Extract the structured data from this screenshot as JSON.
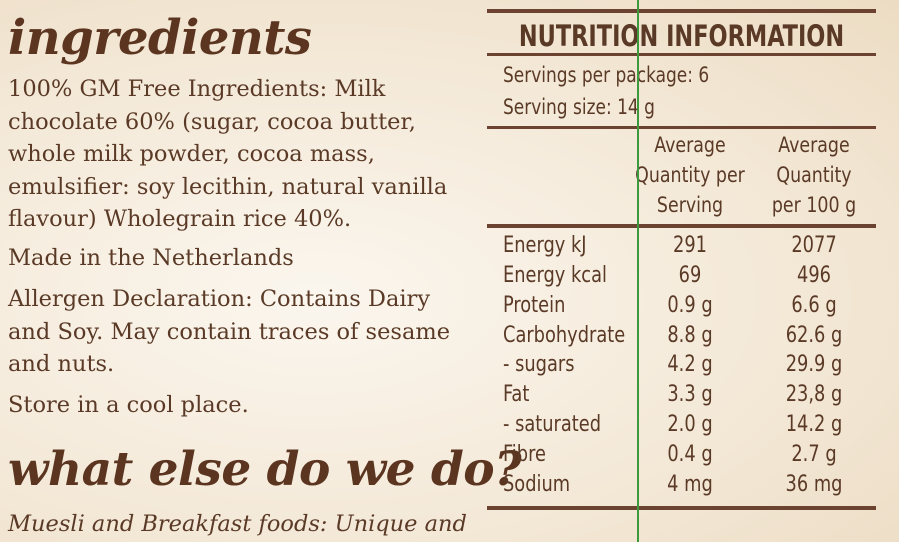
{
  "ingredients": {
    "heading": "ingredients",
    "text": "100% GM Free Ingredients: Milk chocolate 60% (sugar, cocoa butter, whole milk powder, cocoa mass, emulsifier: soy lecithin, natural vanilla flavour) Wholegrain rice 40%.",
    "origin": "Made in the Netherlands",
    "allergen": "Allergen Declaration: Contains Dairy and Soy. May contain traces of sesame and nuts.",
    "storage": "Store in a cool place."
  },
  "what_else": {
    "heading": "what else do we do?",
    "text": "Muesli and Breakfast foods: Unique and"
  },
  "nutrition": {
    "title": "NUTRITION INFORMATION",
    "servings_per_package": "Servings per package: 6",
    "serving_size": "Serving size: 14 g",
    "col1_header": [
      "Average",
      "Quantity per",
      "Serving"
    ],
    "col2_header": [
      "Average",
      "Quantity",
      "per 100 g"
    ],
    "rows": [
      {
        "label": "Energy kJ",
        "per_serving": "291",
        "per_100g": "2077"
      },
      {
        "label": "Energy kcal",
        "per_serving": "69",
        "per_100g": "496"
      },
      {
        "label": "Protein",
        "per_serving": "0.9 g",
        "per_100g": "6.6 g"
      },
      {
        "label": "Carbohydrate",
        "per_serving": "8.8 g",
        "per_100g": "62.6 g"
      },
      {
        "label": "- sugars",
        "per_serving": "4.2 g",
        "per_100g": "29.9 g"
      },
      {
        "label": "Fat",
        "per_serving": "3.3 g",
        "per_100g": "23,8 g"
      },
      {
        "label": "- saturated",
        "per_serving": "2.0 g",
        "per_100g": "14.2 g"
      },
      {
        "label": "Fibre",
        "per_serving": "0.4 g",
        "per_100g": "2.7 g"
      },
      {
        "label": "Sodium",
        "per_serving": "4 mg",
        "per_100g": "36 mg"
      }
    ]
  },
  "colors": {
    "text": "#5a3a26",
    "heading": "#5b3520",
    "rule": "#6b4330",
    "guide_line": "#3c9a3c",
    "background": "#f4e9d8"
  }
}
